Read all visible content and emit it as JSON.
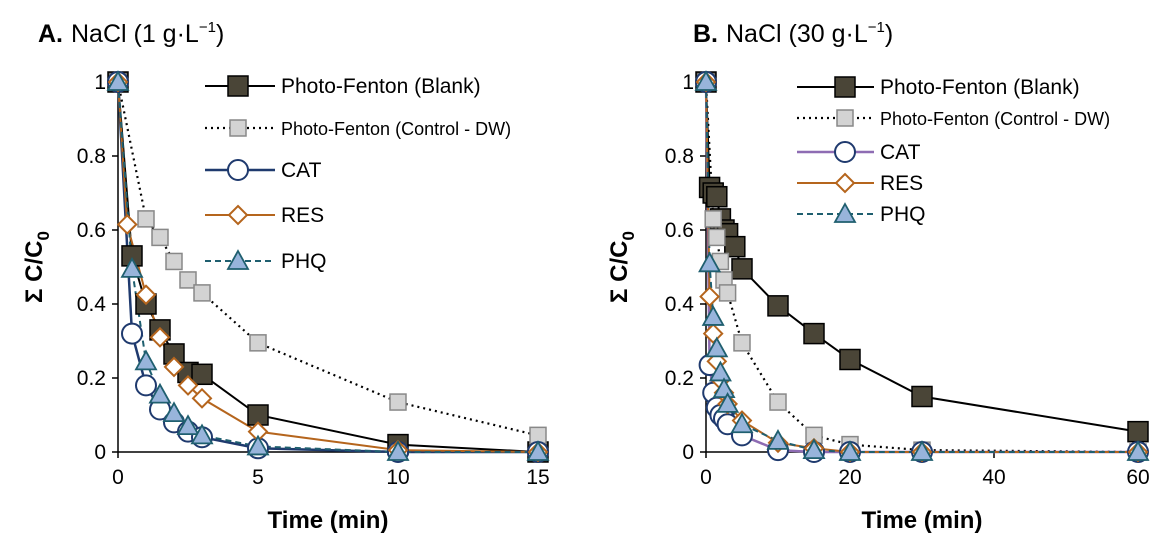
{
  "colors": {
    "blank_fill": "#4A4537",
    "control_fill": "#D3D3D3",
    "cat_line_A": "#1F3A6E",
    "cat_line_B": "#8E6CB3",
    "res_line": "#B5651D",
    "phq_fill": "#98B4DB",
    "phq_line": "#1F5F6F"
  },
  "chart_data": [
    {
      "type": "line",
      "panel_letter": "A.",
      "title": "NaCl (1 g·L",
      "title_sup": "−1",
      "title_end": ")",
      "xlabel": "Time (min)",
      "ylabel_main": "Σ C/C",
      "ylabel_sub": "0",
      "xlim": [
        0,
        15
      ],
      "ylim": [
        0,
        1
      ],
      "xticks": [
        "0",
        "5",
        "10",
        "15"
      ],
      "yticks": [
        "0",
        "0.2",
        "0.4",
        "0.6",
        "0.8",
        "1"
      ],
      "legend_position": "top-right",
      "series": [
        {
          "name": "Photo-Fenton (Blank)",
          "marker": "square",
          "x": [
            0,
            0.5,
            1,
            1.5,
            2,
            2.5,
            3,
            5,
            10,
            15
          ],
          "y": [
            1,
            0.53,
            0.4,
            0.33,
            0.265,
            0.215,
            0.21,
            0.1,
            0.02,
            0.0
          ]
        },
        {
          "name": "Photo-Fenton (Control - DW)",
          "marker": "square",
          "x": [
            0,
            1,
            1.5,
            2,
            2.5,
            3,
            5,
            10,
            15
          ],
          "y": [
            1,
            0.63,
            0.58,
            0.515,
            0.465,
            0.43,
            0.295,
            0.135,
            0.045
          ]
        },
        {
          "name": "CAT",
          "marker": "circle",
          "x": [
            0,
            0.5,
            1,
            1.5,
            2,
            2.5,
            3,
            5,
            10,
            15
          ],
          "y": [
            1,
            0.32,
            0.18,
            0.115,
            0.08,
            0.055,
            0.04,
            0.01,
            0.0,
            0.0
          ]
        },
        {
          "name": "RES",
          "marker": "diamond",
          "x": [
            0,
            0.33,
            1,
            1.5,
            2,
            2.5,
            3,
            5,
            10,
            15
          ],
          "y": [
            1,
            0.615,
            0.425,
            0.31,
            0.23,
            0.18,
            0.145,
            0.055,
            0.005,
            0.0
          ]
        },
        {
          "name": "PHQ",
          "marker": "triangle",
          "x": [
            0,
            0.5,
            1,
            1.5,
            2,
            2.5,
            3,
            5,
            10,
            15
          ],
          "y": [
            1,
            0.495,
            0.245,
            0.155,
            0.105,
            0.07,
            0.045,
            0.015,
            0.0,
            0.0
          ]
        }
      ]
    },
    {
      "type": "line",
      "panel_letter": "B.",
      "title": "NaCl (30 g·L",
      "title_sup": "−1",
      "title_end": ")",
      "xlabel": "Time (min)",
      "ylabel_main": "Σ C/C",
      "ylabel_sub": "0",
      "xlim": [
        0,
        60
      ],
      "ylim": [
        0,
        1
      ],
      "xticks": [
        "0",
        "20",
        "40",
        "60"
      ],
      "yticks": [
        "0",
        "0.2",
        "0.4",
        "0.6",
        "0.8",
        "1"
      ],
      "legend_position": "top-right",
      "series": [
        {
          "name": "Photo-Fenton (Blank)",
          "marker": "square",
          "x": [
            0,
            0.5,
            1,
            1.5,
            2,
            2.5,
            3,
            4,
            5,
            10,
            15,
            20,
            30,
            60
          ],
          "y": [
            1,
            0.715,
            0.7,
            0.69,
            0.63,
            0.6,
            0.59,
            0.555,
            0.495,
            0.395,
            0.32,
            0.25,
            0.15,
            0.055
          ]
        },
        {
          "name": "Photo-Fenton (Control - DW)",
          "marker": "square",
          "x": [
            0,
            1,
            1.5,
            2,
            2.5,
            3,
            5,
            10,
            15,
            20,
            30,
            60
          ],
          "y": [
            1,
            0.63,
            0.58,
            0.515,
            0.465,
            0.43,
            0.295,
            0.135,
            0.045,
            0.02,
            0.005,
            0.0
          ]
        },
        {
          "name": "CAT",
          "marker": "circle",
          "x": [
            0,
            0.5,
            1,
            1.5,
            2,
            2.5,
            3,
            5,
            10,
            15,
            20,
            30,
            60
          ],
          "y": [
            1,
            0.235,
            0.16,
            0.12,
            0.1,
            0.09,
            0.075,
            0.045,
            0.005,
            0.0,
            0.0,
            0.0,
            0.0
          ]
        },
        {
          "name": "RES",
          "marker": "diamond",
          "x": [
            0,
            0.5,
            1,
            1.5,
            2,
            2.5,
            3,
            5,
            10,
            15,
            20,
            30,
            60
          ],
          "y": [
            1,
            0.42,
            0.32,
            0.245,
            0.195,
            0.16,
            0.13,
            0.085,
            0.025,
            0.01,
            0.0,
            0.0,
            0.0
          ]
        },
        {
          "name": "PHQ",
          "marker": "triangle",
          "x": [
            0,
            0.5,
            1,
            1.5,
            2,
            2.5,
            3,
            5,
            10,
            15,
            20,
            30,
            60
          ],
          "y": [
            1,
            0.51,
            0.365,
            0.28,
            0.215,
            0.17,
            0.13,
            0.075,
            0.03,
            0.005,
            0.0,
            0.0,
            0.0
          ]
        }
      ]
    }
  ]
}
